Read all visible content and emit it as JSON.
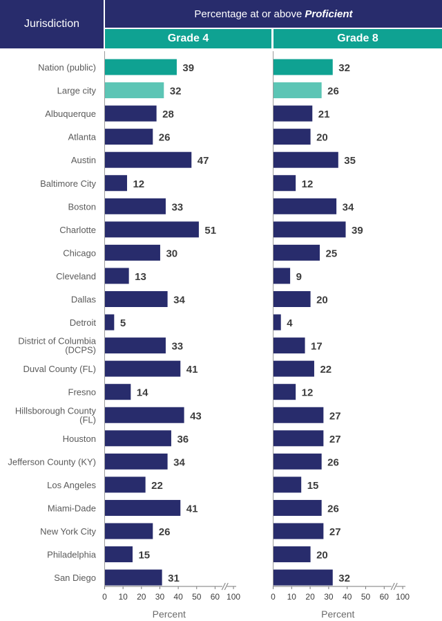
{
  "header": {
    "jurisdiction_label": "Jurisdiction",
    "title_prefix": "Percentage at or above",
    "title_emphasis": "Proficient"
  },
  "colors": {
    "header_bg": "#282c6c",
    "grade_header_bg": "#0fa292",
    "bar_default": "#282c6c",
    "bar_nation": "#0fa292",
    "bar_large_city": "#5cc5b5",
    "label_text": "#5a5a5a",
    "value_text": "#3c3c3c"
  },
  "chart_data": {
    "type": "bar",
    "orientation": "horizontal",
    "categories": [
      [
        "Nation (public)"
      ],
      [
        "Large city"
      ],
      [
        "Albuquerque"
      ],
      [
        "Atlanta"
      ],
      [
        "Austin"
      ],
      [
        "Baltimore City"
      ],
      [
        "Boston"
      ],
      [
        "Charlotte"
      ],
      [
        "Chicago"
      ],
      [
        "Cleveland"
      ],
      [
        "Dallas"
      ],
      [
        "Detroit"
      ],
      [
        "District of Columbia",
        "(DCPS)"
      ],
      [
        "Duval County (FL)"
      ],
      [
        "Fresno"
      ],
      [
        "Hillsborough County",
        "(FL)"
      ],
      [
        "Houston"
      ],
      [
        "Jefferson County (KY)"
      ],
      [
        "Los Angeles"
      ],
      [
        "Miami-Dade"
      ],
      [
        "New York City"
      ],
      [
        "Philadelphia"
      ],
      [
        "San Diego"
      ]
    ],
    "series": [
      {
        "name": "Grade 4",
        "values": [
          39,
          32,
          28,
          26,
          47,
          12,
          33,
          51,
          30,
          13,
          34,
          5,
          33,
          41,
          14,
          43,
          36,
          34,
          22,
          41,
          26,
          15,
          31
        ]
      },
      {
        "name": "Grade 8",
        "values": [
          32,
          26,
          21,
          20,
          35,
          12,
          34,
          39,
          25,
          9,
          20,
          4,
          17,
          22,
          12,
          27,
          27,
          26,
          15,
          26,
          27,
          20,
          32
        ]
      }
    ],
    "x_ticks": [
      "0",
      "10",
      "20",
      "30",
      "40",
      "50",
      "60",
      "100"
    ],
    "x_tick_values": [
      0,
      10,
      20,
      30,
      40,
      50,
      60,
      100
    ],
    "axis_break": "between 60 and 100",
    "xlabel": "Percent",
    "xlim": [
      0,
      100
    ],
    "grid": false
  }
}
